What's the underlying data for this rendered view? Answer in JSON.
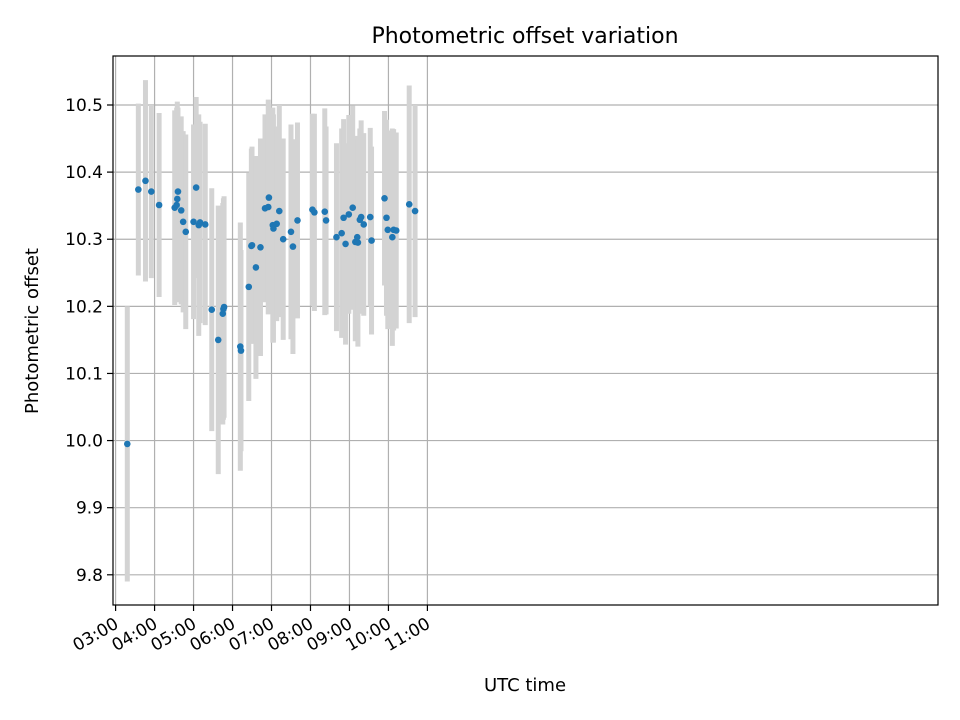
{
  "chart_data": {
    "type": "scatter",
    "title": "Photometric offset variation",
    "xlabel": "UTC time",
    "ylabel": "Photometric offset",
    "grid": true,
    "xlim_minutes": [
      176,
      1446
    ],
    "ylim": [
      9.755,
      10.573
    ],
    "x_tick_minutes": [
      180,
      240,
      300,
      360,
      420,
      480,
      540,
      600,
      660
    ],
    "x_tick_labels": [
      "03:00",
      "04:00",
      "05:00",
      "06:00",
      "07:00",
      "08:00",
      "09:00",
      "10:00",
      "11:00"
    ],
    "y_ticks": [
      9.8,
      9.9,
      10.0,
      10.1,
      10.2,
      10.3,
      10.4,
      10.5
    ],
    "y_tick_labels": [
      "9.8",
      "9.9",
      "10.0",
      "10.1",
      "10.2",
      "10.3",
      "10.4",
      "10.5"
    ],
    "colors": {
      "point": "#1f77b4",
      "error_bar": "#d3d3d3",
      "grid": "#b0b0b0"
    },
    "series": [
      {
        "x": [
          "03:18",
          "03:35",
          "03:46",
          "03:55",
          "04:07",
          "04:31",
          "04:34",
          "04:35",
          "04:36",
          "04:41",
          "04:44",
          "04:48",
          "05:00",
          "05:04",
          "05:08",
          "05:10",
          "05:18",
          "05:28",
          "05:38",
          "05:45",
          "05:46",
          "05:47",
          "06:12",
          "06:13",
          "06:25",
          "06:29",
          "06:30",
          "06:36",
          "06:43",
          "06:50",
          "06:55",
          "06:56",
          "07:02",
          "07:03",
          "07:08",
          "07:12",
          "07:18",
          "07:30",
          "07:33",
          "07:40",
          "08:03",
          "08:06",
          "08:22",
          "08:24",
          "08:40",
          "08:48",
          "08:51",
          "08:54",
          "08:59",
          "09:05",
          "09:09",
          "09:12",
          "09:13",
          "09:16",
          "09:18",
          "09:22",
          "09:32",
          "09:34",
          "09:54",
          "09:57",
          "09:59",
          "10:06",
          "10:08",
          "10:12",
          "10:32",
          "10:41"
        ],
        "y": [
          9.995,
          10.374,
          10.387,
          10.371,
          10.351,
          10.347,
          10.351,
          10.36,
          10.371,
          10.343,
          10.326,
          10.311,
          10.326,
          10.377,
          10.321,
          10.325,
          10.322,
          10.195,
          10.15,
          10.189,
          10.196,
          10.199,
          10.14,
          10.134,
          10.229,
          10.29,
          10.291,
          10.258,
          10.288,
          10.346,
          10.348,
          10.362,
          10.321,
          10.316,
          10.323,
          10.342,
          10.3,
          10.311,
          10.289,
          10.328,
          10.344,
          10.34,
          10.341,
          10.328,
          10.303,
          10.309,
          10.332,
          10.293,
          10.337,
          10.347,
          10.296,
          10.303,
          10.295,
          10.329,
          10.333,
          10.322,
          10.333,
          10.298,
          10.361,
          10.332,
          10.314,
          10.303,
          10.314,
          10.313,
          10.352,
          10.342
        ],
        "yerr": [
          0.205,
          0.128,
          0.15,
          0.129,
          0.137,
          0.145,
          0.145,
          0.145,
          0.125,
          0.14,
          0.135,
          0.145,
          0.145,
          0.135,
          0.165,
          0.15,
          0.15,
          0.181,
          0.2,
          0.165,
          0.165,
          0.165,
          0.185,
          0.15,
          0.17,
          0.145,
          0.147,
          0.166,
          0.162,
          0.14,
          0.16,
          0.14,
          0.175,
          0.17,
          0.145,
          0.158,
          0.15,
          0.16,
          0.16,
          0.146,
          0.143,
          0.147,
          0.154,
          0.14,
          0.14,
          0.156,
          0.147,
          0.15,
          0.148,
          0.152,
          0.148,
          0.151,
          0.155,
          0.136,
          0.144,
          0.136,
          0.133,
          0.14,
          0.13,
          0.146,
          0.148,
          0.162,
          0.15,
          0.146,
          0.177,
          0.158
        ]
      }
    ]
  }
}
